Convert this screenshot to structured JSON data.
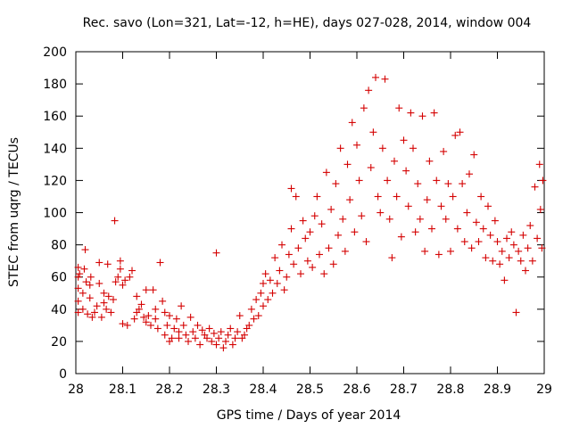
{
  "chart_data": {
    "type": "scatter",
    "title": "Rec. savo (Lon=321, Lat=-12, h=HE), days 027-028, 2014, window 004",
    "xlabel": "GPS time / Days of year 2014",
    "ylabel": "STEC from uqrg / TECUs",
    "xlim": [
      28,
      29
    ],
    "ylim": [
      0,
      200
    ],
    "xticks": [
      "28",
      "28.1",
      "28.2",
      "28.3",
      "28.4",
      "28.5",
      "28.6",
      "28.7",
      "28.8",
      "28.9",
      "29"
    ],
    "yticks": [
      "0",
      "20",
      "40",
      "60",
      "80",
      "100",
      "120",
      "140",
      "160",
      "180",
      "200"
    ],
    "grid": false,
    "legend": "none",
    "marker": "+",
    "colors": {
      "points": "#d40000",
      "axes": "#000000"
    },
    "series": [
      {
        "points": [
          [
            28.005,
            38
          ],
          [
            28.005,
            45
          ],
          [
            28.005,
            53
          ],
          [
            28.005,
            60
          ],
          [
            28.005,
            66
          ],
          [
            28.008,
            62
          ],
          [
            28.015,
            40
          ],
          [
            28.015,
            50
          ],
          [
            28.018,
            65
          ],
          [
            28.02,
            77
          ],
          [
            28.022,
            57
          ],
          [
            28.025,
            37
          ],
          [
            28.03,
            47
          ],
          [
            28.03,
            55
          ],
          [
            28.032,
            60
          ],
          [
            28.035,
            35
          ],
          [
            28.04,
            38
          ],
          [
            28.045,
            42
          ],
          [
            28.05,
            69
          ],
          [
            28.05,
            56
          ],
          [
            28.055,
            35
          ],
          [
            28.06,
            44
          ],
          [
            28.06,
            50
          ],
          [
            28.065,
            40
          ],
          [
            28.068,
            68
          ],
          [
            28.07,
            48
          ],
          [
            28.075,
            38
          ],
          [
            28.08,
            46
          ],
          [
            28.083,
            95
          ],
          [
            28.085,
            57
          ],
          [
            28.09,
            60
          ],
          [
            28.095,
            65
          ],
          [
            28.095,
            70
          ],
          [
            28.1,
            55
          ],
          [
            28.1,
            31
          ],
          [
            28.105,
            58
          ],
          [
            28.11,
            30
          ],
          [
            28.115,
            60
          ],
          [
            28.12,
            64
          ],
          [
            28.125,
            34
          ],
          [
            28.13,
            38
          ],
          [
            28.13,
            48
          ],
          [
            28.135,
            40
          ],
          [
            28.14,
            43
          ],
          [
            28.145,
            35
          ],
          [
            28.15,
            52
          ],
          [
            28.15,
            32
          ],
          [
            28.155,
            36
          ],
          [
            28.16,
            30
          ],
          [
            28.165,
            52
          ],
          [
            28.17,
            40
          ],
          [
            28.17,
            34
          ],
          [
            28.175,
            28
          ],
          [
            28.18,
            69
          ],
          [
            28.185,
            45
          ],
          [
            28.19,
            38
          ],
          [
            28.19,
            24
          ],
          [
            28.195,
            30
          ],
          [
            28.2,
            36
          ],
          [
            28.2,
            20
          ],
          [
            28.205,
            22
          ],
          [
            28.21,
            28
          ],
          [
            28.215,
            34
          ],
          [
            28.22,
            22
          ],
          [
            28.22,
            26
          ],
          [
            28.225,
            42
          ],
          [
            28.23,
            30
          ],
          [
            28.235,
            24
          ],
          [
            28.24,
            20
          ],
          [
            28.245,
            35
          ],
          [
            28.25,
            26
          ],
          [
            28.255,
            22
          ],
          [
            28.26,
            30
          ],
          [
            28.265,
            18
          ],
          [
            28.27,
            27
          ],
          [
            28.275,
            24
          ],
          [
            28.28,
            22
          ],
          [
            28.285,
            28
          ],
          [
            28.29,
            20
          ],
          [
            28.295,
            25
          ],
          [
            28.3,
            75
          ],
          [
            28.3,
            18
          ],
          [
            28.305,
            22
          ],
          [
            28.31,
            26
          ],
          [
            28.315,
            16
          ],
          [
            28.32,
            20
          ],
          [
            28.325,
            24
          ],
          [
            28.33,
            28
          ],
          [
            28.335,
            18
          ],
          [
            28.34,
            22
          ],
          [
            28.345,
            26
          ],
          [
            28.35,
            36
          ],
          [
            28.355,
            22
          ],
          [
            28.36,
            24
          ],
          [
            28.365,
            28
          ],
          [
            28.37,
            30
          ],
          [
            28.375,
            40
          ],
          [
            28.38,
            34
          ],
          [
            28.385,
            46
          ],
          [
            28.39,
            36
          ],
          [
            28.395,
            50
          ],
          [
            28.4,
            42
          ],
          [
            28.4,
            56
          ],
          [
            28.405,
            62
          ],
          [
            28.41,
            46
          ],
          [
            28.415,
            58
          ],
          [
            28.42,
            50
          ],
          [
            28.425,
            72
          ],
          [
            28.43,
            56
          ],
          [
            28.435,
            64
          ],
          [
            28.44,
            80
          ],
          [
            28.445,
            52
          ],
          [
            28.45,
            60
          ],
          [
            28.455,
            74
          ],
          [
            28.46,
            115
          ],
          [
            28.46,
            90
          ],
          [
            28.465,
            68
          ],
          [
            28.47,
            110
          ],
          [
            28.475,
            78
          ],
          [
            28.48,
            62
          ],
          [
            28.485,
            95
          ],
          [
            28.49,
            84
          ],
          [
            28.495,
            70
          ],
          [
            28.5,
            88
          ],
          [
            28.505,
            66
          ],
          [
            28.51,
            98
          ],
          [
            28.515,
            110
          ],
          [
            28.52,
            74
          ],
          [
            28.525,
            93
          ],
          [
            28.53,
            62
          ],
          [
            28.535,
            125
          ],
          [
            28.54,
            78
          ],
          [
            28.545,
            102
          ],
          [
            28.55,
            68
          ],
          [
            28.555,
            118
          ],
          [
            28.56,
            86
          ],
          [
            28.565,
            140
          ],
          [
            28.57,
            96
          ],
          [
            28.575,
            76
          ],
          [
            28.58,
            130
          ],
          [
            28.585,
            108
          ],
          [
            28.59,
            156
          ],
          [
            28.595,
            88
          ],
          [
            28.6,
            142
          ],
          [
            28.605,
            120
          ],
          [
            28.61,
            98
          ],
          [
            28.615,
            165
          ],
          [
            28.62,
            82
          ],
          [
            28.625,
            176
          ],
          [
            28.63,
            128
          ],
          [
            28.635,
            150
          ],
          [
            28.64,
            184
          ],
          [
            28.645,
            110
          ],
          [
            28.65,
            100
          ],
          [
            28.655,
            140
          ],
          [
            28.66,
            183
          ],
          [
            28.665,
            120
          ],
          [
            28.67,
            96
          ],
          [
            28.675,
            72
          ],
          [
            28.68,
            132
          ],
          [
            28.685,
            110
          ],
          [
            28.69,
            165
          ],
          [
            28.695,
            85
          ],
          [
            28.7,
            145
          ],
          [
            28.705,
            126
          ],
          [
            28.71,
            104
          ],
          [
            28.715,
            162
          ],
          [
            28.72,
            140
          ],
          [
            28.725,
            88
          ],
          [
            28.73,
            118
          ],
          [
            28.735,
            96
          ],
          [
            28.74,
            160
          ],
          [
            28.745,
            76
          ],
          [
            28.75,
            108
          ],
          [
            28.755,
            132
          ],
          [
            28.76,
            90
          ],
          [
            28.765,
            162
          ],
          [
            28.77,
            120
          ],
          [
            28.775,
            74
          ],
          [
            28.78,
            104
          ],
          [
            28.785,
            138
          ],
          [
            28.79,
            96
          ],
          [
            28.795,
            118
          ],
          [
            28.8,
            76
          ],
          [
            28.805,
            110
          ],
          [
            28.81,
            148
          ],
          [
            28.815,
            90
          ],
          [
            28.82,
            150
          ],
          [
            28.825,
            118
          ],
          [
            28.83,
            82
          ],
          [
            28.835,
            100
          ],
          [
            28.84,
            124
          ],
          [
            28.845,
            78
          ],
          [
            28.85,
            136
          ],
          [
            28.855,
            94
          ],
          [
            28.86,
            82
          ],
          [
            28.865,
            110
          ],
          [
            28.87,
            90
          ],
          [
            28.875,
            72
          ],
          [
            28.88,
            104
          ],
          [
            28.885,
            86
          ],
          [
            28.89,
            70
          ],
          [
            28.895,
            95
          ],
          [
            28.9,
            82
          ],
          [
            28.905,
            68
          ],
          [
            28.91,
            76
          ],
          [
            28.915,
            58
          ],
          [
            28.92,
            84
          ],
          [
            28.925,
            72
          ],
          [
            28.93,
            88
          ],
          [
            28.935,
            80
          ],
          [
            28.94,
            38
          ],
          [
            28.945,
            76
          ],
          [
            28.95,
            70
          ],
          [
            28.955,
            86
          ],
          [
            28.96,
            64
          ],
          [
            28.965,
            78
          ],
          [
            28.97,
            92
          ],
          [
            28.975,
            70
          ],
          [
            28.98,
            116
          ],
          [
            28.985,
            84
          ],
          [
            28.99,
            130
          ],
          [
            28.992,
            102
          ],
          [
            28.995,
            78
          ],
          [
            28.997,
            120
          ]
        ]
      }
    ]
  }
}
